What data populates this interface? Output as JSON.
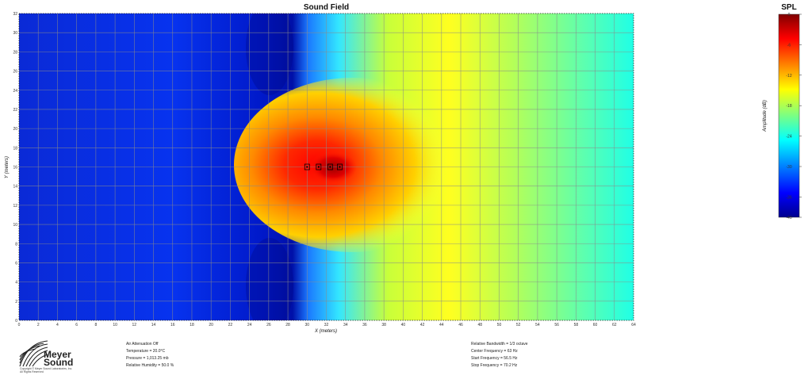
{
  "chart_data": {
    "type": "heatmap",
    "title": "Sound Field",
    "xlabel": "X (meters)",
    "ylabel": "Y (meters)",
    "xlim": [
      0,
      64
    ],
    "ylim": [
      0,
      32
    ],
    "x_ticks": [
      "0",
      "2",
      "4",
      "6",
      "8",
      "10",
      "12",
      "14",
      "16",
      "18",
      "20",
      "22",
      "24",
      "26",
      "28",
      "30",
      "32",
      "34",
      "36",
      "38",
      "40",
      "42",
      "44",
      "46",
      "48",
      "50",
      "52",
      "54",
      "56",
      "58",
      "60",
      "62",
      "64"
    ],
    "y_ticks": [
      "0",
      "2",
      "4",
      "6",
      "8",
      "10",
      "12",
      "14",
      "16",
      "18",
      "20",
      "22",
      "24",
      "26",
      "28",
      "30",
      "32"
    ],
    "grid": true,
    "source_position": [
      32,
      16
    ],
    "speaker_x": [
      30,
      31.2,
      32.4,
      33.4
    ],
    "colorbar": {
      "title": "SPL",
      "label": "Amplitude (dB)",
      "ticks": [
        "0",
        "-6",
        "-12",
        "-18",
        "-24",
        "-30",
        "-36",
        "-40"
      ],
      "range": [
        -40,
        0
      ],
      "colormap": "jet"
    }
  },
  "info_left": [
    "Air Attenuation Off",
    "Temperature = 20.0°C",
    "Pressure = 1,013.25 mb",
    "Relative Humidity = 50.0 %"
  ],
  "info_right": [
    "Relative Bandwidth = 1/3 octave",
    "Center Frequency = 63 Hz",
    "Start Frequency = 56.5 Hz",
    "Stop Frequency = 70.2 Hz"
  ],
  "logo": {
    "line1": "Meyer",
    "line2": "Sound",
    "copyright1": "Copyright © Meyer Sound Laboratories, Inc.",
    "copyright2": "All Rights Reserved"
  },
  "colors": {
    "jet": [
      "#00008f",
      "#0000ff",
      "#00ffff",
      "#ffff00",
      "#ff0000",
      "#800000"
    ]
  }
}
